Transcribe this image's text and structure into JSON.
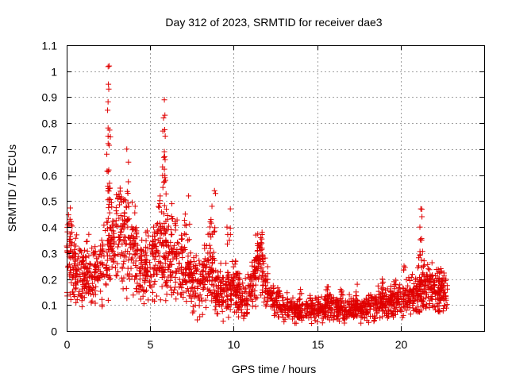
{
  "chart_data": {
    "type": "scatter",
    "title": "Day 312 of 2023, SRMTID for receiver dae3",
    "xlabel": "GPS time / hours",
    "ylabel": "SRMTID / TECUs",
    "xlim": [
      0,
      25
    ],
    "ylim": [
      0,
      1.1
    ],
    "grid": true,
    "marker": "plus",
    "color": "#e00000",
    "x_ticks": [
      0,
      5,
      10,
      15,
      20
    ],
    "x_tick_labels": [
      "0",
      "5",
      "10",
      "15",
      "20"
    ],
    "y_ticks": [
      0,
      0.1,
      0.2,
      0.3,
      0.4,
      0.5,
      0.6,
      0.7,
      0.8,
      0.9,
      1.0,
      1.1
    ],
    "y_tick_labels": [
      "0",
      "0.1",
      "0.2",
      "0.3",
      "0.4",
      "0.5",
      "0.6",
      "0.7",
      "0.8",
      "0.9",
      "1",
      "1.1"
    ],
    "envelope": [
      [
        0.0,
        0.3
      ],
      [
        0.2,
        0.33
      ],
      [
        0.5,
        0.21
      ],
      [
        1.0,
        0.22
      ],
      [
        1.5,
        0.21
      ],
      [
        2.0,
        0.24
      ],
      [
        2.5,
        0.3
      ],
      [
        3.0,
        0.36
      ],
      [
        3.5,
        0.34
      ],
      [
        4.0,
        0.28
      ],
      [
        4.5,
        0.23
      ],
      [
        5.0,
        0.24
      ],
      [
        5.5,
        0.32
      ],
      [
        5.8,
        0.28
      ],
      [
        6.2,
        0.26
      ],
      [
        6.8,
        0.26
      ],
      [
        7.5,
        0.21
      ],
      [
        8.0,
        0.17
      ],
      [
        8.5,
        0.26
      ],
      [
        9.0,
        0.16
      ],
      [
        9.5,
        0.14
      ],
      [
        10.0,
        0.18
      ],
      [
        10.5,
        0.12
      ],
      [
        11.0,
        0.15
      ],
      [
        11.5,
        0.27
      ],
      [
        12.0,
        0.17
      ],
      [
        12.5,
        0.11
      ],
      [
        13.0,
        0.09
      ],
      [
        14.0,
        0.08
      ],
      [
        15.0,
        0.09
      ],
      [
        16.0,
        0.09
      ],
      [
        17.0,
        0.08
      ],
      [
        18.0,
        0.09
      ],
      [
        19.0,
        0.11
      ],
      [
        20.0,
        0.12
      ],
      [
        21.0,
        0.15
      ],
      [
        21.5,
        0.17
      ],
      [
        22.0,
        0.16
      ],
      [
        22.8,
        0.14
      ]
    ],
    "spikes": [
      [
        2.55,
        1.02
      ],
      [
        2.5,
        0.95
      ],
      [
        2.45,
        0.85
      ],
      [
        2.48,
        0.75
      ],
      [
        2.52,
        0.62
      ],
      [
        2.6,
        0.55
      ],
      [
        3.6,
        0.7
      ],
      [
        3.7,
        0.65
      ],
      [
        3.2,
        0.55
      ],
      [
        3.4,
        0.5
      ],
      [
        4.1,
        0.48
      ],
      [
        5.85,
        0.89
      ],
      [
        5.8,
        0.82
      ],
      [
        5.9,
        0.75
      ],
      [
        5.85,
        0.69
      ],
      [
        5.88,
        0.59
      ],
      [
        5.6,
        0.52
      ],
      [
        6.3,
        0.49
      ],
      [
        6.5,
        0.42
      ],
      [
        7.3,
        0.52
      ],
      [
        7.1,
        0.45
      ],
      [
        8.85,
        0.54
      ],
      [
        8.7,
        0.48
      ],
      [
        8.6,
        0.42
      ],
      [
        9.8,
        0.47
      ],
      [
        9.6,
        0.4
      ],
      [
        11.7,
        0.38
      ],
      [
        11.5,
        0.33
      ],
      [
        21.2,
        0.47
      ],
      [
        21.15,
        0.4
      ],
      [
        21.25,
        0.35
      ],
      [
        21.4,
        0.27
      ],
      [
        20.2,
        0.25
      ],
      [
        0.2,
        0.43
      ],
      [
        0.6,
        0.37
      ],
      [
        1.7,
        0.3
      ],
      [
        4.5,
        0.35
      ],
      [
        5.2,
        0.4
      ],
      [
        18.9,
        0.2
      ],
      [
        17.4,
        0.18
      ],
      [
        15.6,
        0.17
      ],
      [
        14.0,
        0.16
      ],
      [
        22.4,
        0.24
      ],
      [
        19.6,
        0.19
      ],
      [
        16.4,
        0.16
      ]
    ],
    "x_max_data": 22.8
  }
}
